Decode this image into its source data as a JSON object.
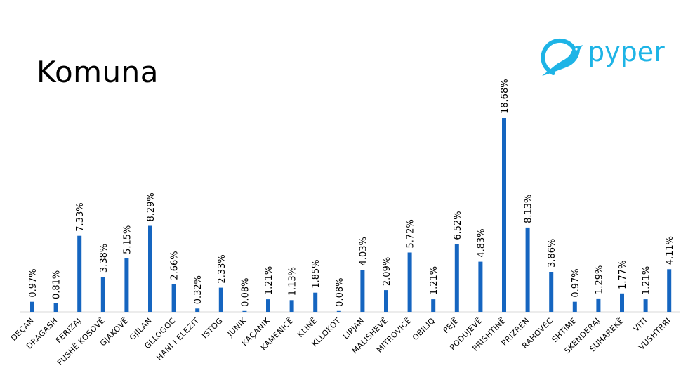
{
  "header": {
    "title": "Komuna",
    "logo_text": "pyper"
  },
  "colors": {
    "bar": "#1565c0",
    "accent": "#1eb4e6",
    "axis": "#d9d9d9"
  },
  "chart_data": {
    "type": "bar",
    "title": "Komuna",
    "xlabel": "",
    "ylabel": "",
    "ylim": [
      0,
      18.68
    ],
    "grid": false,
    "legend": "none",
    "categories": [
      "DEÇAN",
      "DRAGASH",
      "FERIZAJ",
      "FUSHË KOSOVË",
      "GJAKOVË",
      "GJILAN",
      "GLLOGOC",
      "HANI I ELEZIT",
      "ISTOG",
      "JUNIK",
      "KAÇANIK",
      "KAMENICË",
      "KLINË",
      "KLLOKOT",
      "LIPJAN",
      "MALISHEVË",
      "MITROVICË",
      "OBILIQ",
      "PEJË",
      "PODUJEVË",
      "PRISHTINË",
      "PRIZREN",
      "RAHOVEC",
      "SHTIME",
      "SKENDERAJ",
      "SUHAREKË",
      "VITI",
      "VUSHTRRI"
    ],
    "values": [
      0.97,
      0.81,
      7.33,
      3.38,
      5.15,
      8.29,
      2.66,
      0.32,
      2.33,
      0.08,
      1.21,
      1.13,
      1.85,
      0.08,
      4.03,
      2.09,
      5.72,
      1.21,
      6.52,
      4.83,
      18.68,
      8.13,
      3.86,
      0.97,
      1.29,
      1.77,
      1.21,
      4.11
    ],
    "value_labels": [
      "0.97%",
      "0.81%",
      "7.33%",
      "3.38%",
      "5.15%",
      "8.29%",
      "2.66%",
      "0.32%",
      "2.33%",
      "0.08%",
      "1.21%",
      "1.13%",
      "1.85%",
      "0.08%",
      "4.03%",
      "2.09%",
      "5.72%",
      "1.21%",
      "6.52%",
      "4.83%",
      "18.68%",
      "8.13%",
      "3.86%",
      "0.97%",
      "1.29%",
      "1.77%",
      "1.21%",
      "4.11%"
    ]
  }
}
